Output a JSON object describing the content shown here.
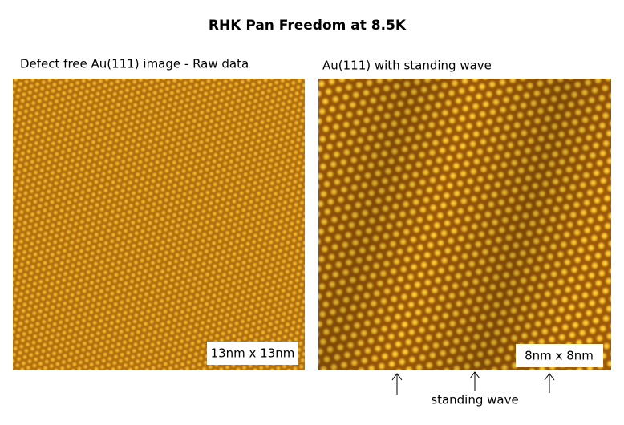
{
  "title": "RHK Pan Freedom at 8.5K",
  "panels": [
    {
      "caption": "Defect free Au(111) image - Raw data",
      "scale_label": "13nm x 13nm"
    },
    {
      "caption": "Au(111) with standing wave",
      "scale_label": "8nm x 8nm"
    }
  ],
  "annotation": "standing wave"
}
